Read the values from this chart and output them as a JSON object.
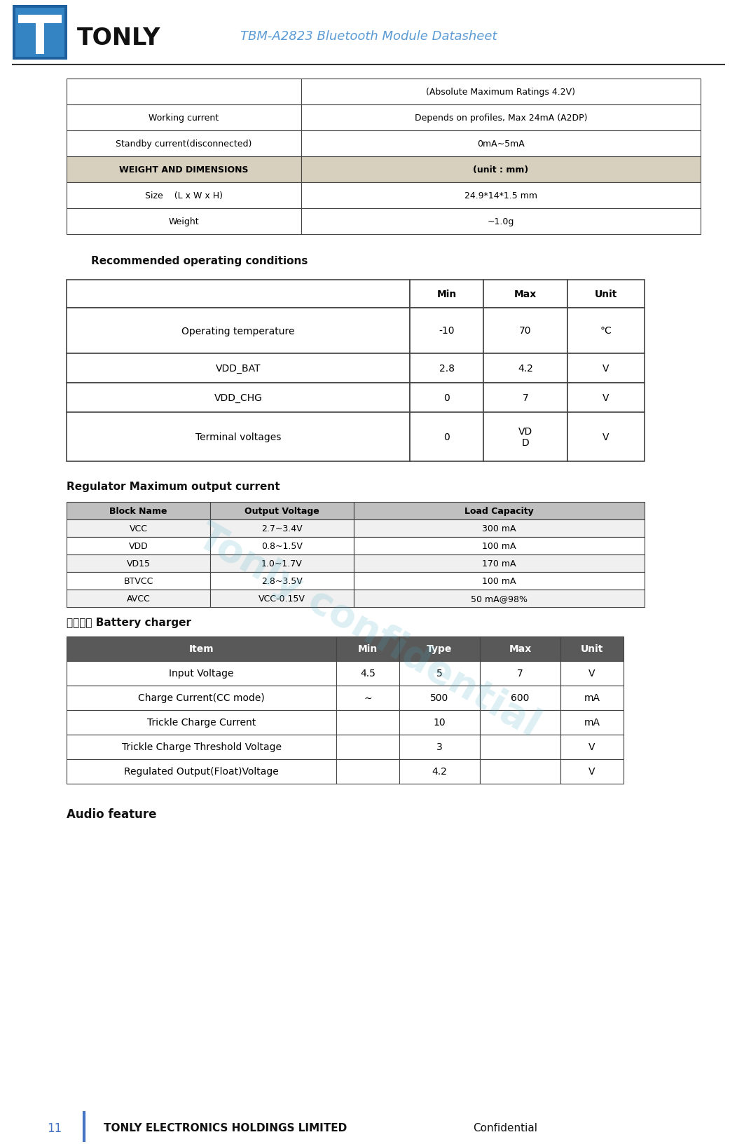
{
  "title": "TBM-A2823 Bluetooth Module Datasheet",
  "title_color": "#5b9bd5",
  "page_number": "11",
  "footer_text_bold": "TONLY ELECTRONICS HOLDINGS LIMITED",
  "footer_text_normal": "Confidential",
  "watermark": "Tonly confidential",
  "table1": {
    "rows": [
      [
        "",
        "(Absolute Maximum Ratings 4.2V)"
      ],
      [
        "Working current",
        "Depends on profiles, Max 24mA (A2DP)"
      ],
      [
        "Standby current(disconnected)",
        "0mA~5mA"
      ],
      [
        "WEIGHT AND DIMENSIONS",
        "(unit : mm)"
      ],
      [
        "Size    (L x W x H)",
        "24.9*14*1.5 mm"
      ],
      [
        "Weight",
        "~1.0g"
      ]
    ],
    "bold_row": 3,
    "highlight_color": "#d8d0bf",
    "border_color": "#444444"
  },
  "section1_title": "Recommended operating conditions",
  "table2": {
    "headers": [
      "",
      "Min",
      "Max",
      "Unit"
    ],
    "rows": [
      [
        "Operating temperature",
        "-10",
        "70",
        "°C"
      ],
      [
        "VDD_BAT",
        "2.8",
        "4.2",
        "V"
      ],
      [
        "VDD_CHG",
        "0",
        "7",
        "V"
      ],
      [
        "Terminal voltages",
        "0",
        "VD\nD",
        "V"
      ]
    ],
    "border_color": "#444444"
  },
  "section2_title": "Regulator Maximum output current",
  "table3": {
    "headers": [
      "Block Name",
      "Output Voltage",
      "Load Capacity"
    ],
    "rows": [
      [
        "VCC",
        "2.7~3.4V",
        "300 mA"
      ],
      [
        "VDD",
        "0.8~1.5V",
        "100 mA"
      ],
      [
        "VD15",
        "1.0~1.7V",
        "170 mA"
      ],
      [
        "BTVCC",
        "2.8~3.5V",
        "100 mA"
      ],
      [
        "AVCC",
        "VCC-0.15V",
        "50 mA@98%"
      ]
    ],
    "header_bg": "#bfbfbf",
    "border_color": "#444444"
  },
  "section3_title": "电池充电 Battery charger",
  "table4": {
    "headers": [
      "Item",
      "Min",
      "Type",
      "Max",
      "Unit"
    ],
    "rows": [
      [
        "Input Voltage",
        "4.5",
        "5",
        "7",
        "V"
      ],
      [
        "Charge Current(CC mode)",
        "~",
        "500",
        "600",
        "mA"
      ],
      [
        "Trickle Charge Current",
        "",
        "10",
        "",
        "mA"
      ],
      [
        "Trickle Charge Threshold Voltage",
        "",
        "3",
        "",
        "V"
      ],
      [
        "Regulated Output(Float)Voltage",
        "",
        "4.2",
        "",
        "V"
      ]
    ],
    "header_bg": "#595959",
    "header_fg": "#ffffff",
    "border_color": "#444444"
  },
  "section4_title": "Audio feature",
  "logo_dark": "#1a5fa8",
  "logo_mid": "#2e80c0",
  "logo_light": "#5bafd6"
}
